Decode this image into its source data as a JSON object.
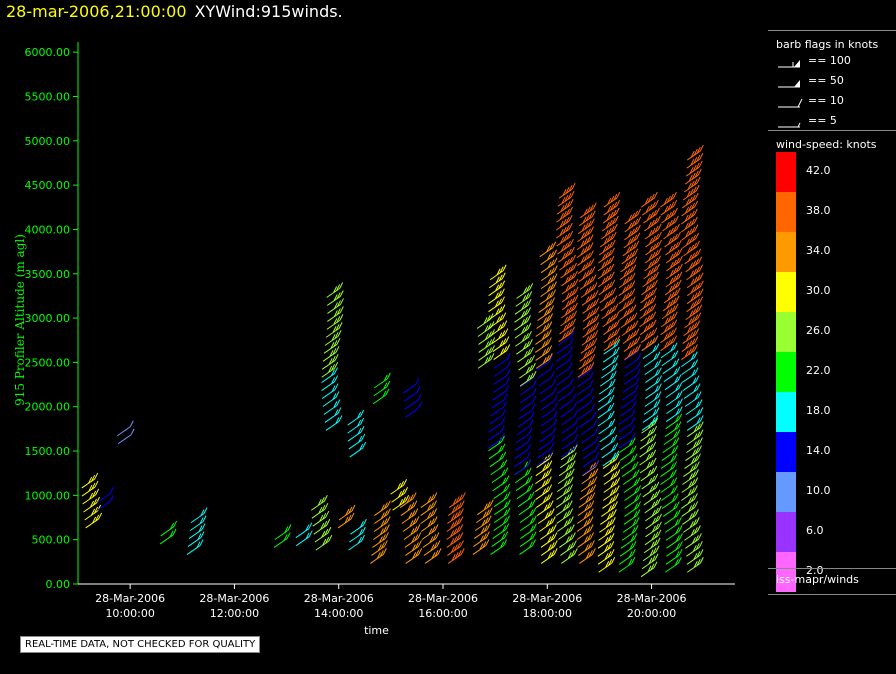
{
  "header": {
    "datetime": "28-mar-2006,21:00:00",
    "product": "XYWind:915winds."
  },
  "chart_data": {
    "type": "scatter",
    "subtype": "wind-barbs",
    "ylabel": "915 Profiler Altitude (m agl)",
    "xlabel": "time",
    "ylim": [
      0,
      6250
    ],
    "y_ticks": [
      "0.00",
      "500.00",
      "1000.00",
      "1500.00",
      "2000.00",
      "2500.00",
      "3000.00",
      "3500.00",
      "4000.00",
      "4500.00",
      "5000.00",
      "5500.00",
      "6000.00"
    ],
    "x_ticks": [
      {
        "date": "28-Mar-2006",
        "time": "10:00:00",
        "hour": 10
      },
      {
        "date": "28-Mar-2006",
        "time": "12:00:00",
        "hour": 12
      },
      {
        "date": "28-Mar-2006",
        "time": "14:00:00",
        "hour": 14
      },
      {
        "date": "28-Mar-2006",
        "time": "16:00:00",
        "hour": 16
      },
      {
        "date": "28-Mar-2006",
        "time": "18:00:00",
        "hour": 18
      },
      {
        "date": "28-Mar-2006",
        "time": "20:00:00",
        "hour": 20
      }
    ],
    "xlim_hours": [
      9.0,
      21.6
    ],
    "profiles": [
      {
        "t": 9.3,
        "bands": [
          [
            700,
            1200,
            30
          ]
        ]
      },
      {
        "t": 9.6,
        "bands": [
          [
            900,
            1000,
            14
          ]
        ]
      },
      {
        "t": 9.9,
        "bands": [
          [
            1650,
            1800,
            10
          ]
        ]
      },
      {
        "t": 10.8,
        "bands": [
          [
            520,
            620,
            22
          ]
        ]
      },
      {
        "t": 11.3,
        "bands": [
          [
            400,
            800,
            18
          ]
        ]
      },
      {
        "t": 12.9,
        "bands": [
          [
            480,
            600,
            22
          ]
        ]
      },
      {
        "t": 13.3,
        "bands": [
          [
            500,
            600,
            18
          ]
        ]
      },
      {
        "t": 13.7,
        "bands": [
          [
            450,
            900,
            26
          ]
        ]
      },
      {
        "t": 13.9,
        "bands": [
          [
            2400,
            3300,
            26
          ],
          [
            1800,
            2350,
            18
          ]
        ]
      },
      {
        "t": 14.2,
        "bands": [
          [
            700,
            850,
            34
          ]
        ]
      },
      {
        "t": 14.4,
        "bands": [
          [
            450,
            650,
            18
          ],
          [
            1500,
            1900,
            18
          ]
        ]
      },
      {
        "t": 14.8,
        "bands": [
          [
            300,
            900,
            34
          ],
          [
            2100,
            2300,
            22
          ]
        ]
      },
      {
        "t": 15.2,
        "bands": [
          [
            900,
            1100,
            30
          ]
        ]
      },
      {
        "t": 15.4,
        "bands": [
          [
            300,
            1000,
            34
          ],
          [
            1950,
            2300,
            14
          ]
        ]
      },
      {
        "t": 15.8,
        "bands": [
          [
            300,
            1000,
            34
          ]
        ]
      },
      {
        "t": 16.3,
        "bands": [
          [
            300,
            1000,
            38
          ]
        ]
      },
      {
        "t": 16.8,
        "bands": [
          [
            400,
            900,
            34
          ],
          [
            2500,
            3000,
            26
          ]
        ]
      },
      {
        "t": 17.1,
        "bands": [
          [
            400,
            1600,
            22
          ],
          [
            1600,
            2500,
            14
          ],
          [
            2600,
            3500,
            30
          ]
        ]
      },
      {
        "t": 17.6,
        "bands": [
          [
            400,
            1300,
            22
          ],
          [
            1300,
            2300,
            14
          ],
          [
            2300,
            3300,
            26
          ]
        ]
      },
      {
        "t": 18.0,
        "bands": [
          [
            300,
            1400,
            30
          ],
          [
            1400,
            2500,
            14
          ],
          [
            2500,
            3800,
            34
          ]
        ]
      },
      {
        "t": 18.4,
        "bands": [
          [
            300,
            1500,
            26
          ],
          [
            1500,
            2800,
            14
          ],
          [
            2800,
            4500,
            38
          ]
        ]
      },
      {
        "t": 18.8,
        "bands": [
          [
            300,
            1300,
            34
          ],
          [
            1300,
            2400,
            14
          ],
          [
            2400,
            4200,
            38
          ]
        ]
      },
      {
        "t": 19.2,
        "bands": [
          [
            200,
            1400,
            30
          ],
          [
            1400,
            2700,
            18
          ],
          [
            2700,
            4400,
            38
          ]
        ]
      },
      {
        "t": 19.6,
        "bands": [
          [
            200,
            1600,
            22
          ],
          [
            1600,
            2600,
            14
          ],
          [
            2600,
            4200,
            38
          ]
        ]
      },
      {
        "t": 20.0,
        "bands": [
          [
            150,
            1800,
            26
          ],
          [
            1800,
            2700,
            18
          ],
          [
            2700,
            4400,
            38
          ]
        ]
      },
      {
        "t": 20.4,
        "bands": [
          [
            200,
            1900,
            22
          ],
          [
            1900,
            2700,
            18
          ],
          [
            2700,
            4400,
            38
          ]
        ]
      },
      {
        "t": 20.8,
        "bands": [
          [
            200,
            1800,
            26
          ],
          [
            1800,
            2600,
            18
          ],
          [
            2600,
            4900,
            38
          ]
        ]
      }
    ]
  },
  "legend": {
    "barb_title": "barb flags in knots",
    "barbs": [
      {
        "label": "== 100",
        "kind": "flag2"
      },
      {
        "label": "== 50",
        "kind": "flag"
      },
      {
        "label": "== 10",
        "kind": "full"
      },
      {
        "label": "== 5",
        "kind": "half"
      }
    ],
    "speed_title": "wind-speed: knots",
    "scale": [
      {
        "value": "42.0",
        "color": "#ff0000"
      },
      {
        "value": "38.0",
        "color": "#ff6600"
      },
      {
        "value": "34.0",
        "color": "#ff9900"
      },
      {
        "value": "30.0",
        "color": "#ffff00"
      },
      {
        "value": "26.0",
        "color": "#99ff33"
      },
      {
        "value": "22.0",
        "color": "#00ff00"
      },
      {
        "value": "18.0",
        "color": "#00ffff"
      },
      {
        "value": "14.0",
        "color": "#0000ff"
      },
      {
        "value": "10.0",
        "color": "#6699ff"
      },
      {
        "value": "6.0",
        "color": "#9933ff"
      },
      {
        "value": "2.0",
        "color": "#ff66ff"
      }
    ],
    "source": "iss-mapr/winds"
  },
  "note": "REAL-TIME DATA, NOT CHECKED FOR QUALITY",
  "colors": {
    "axis": "#00ff00",
    "background": "#000000",
    "title_date": "#ffff00"
  }
}
